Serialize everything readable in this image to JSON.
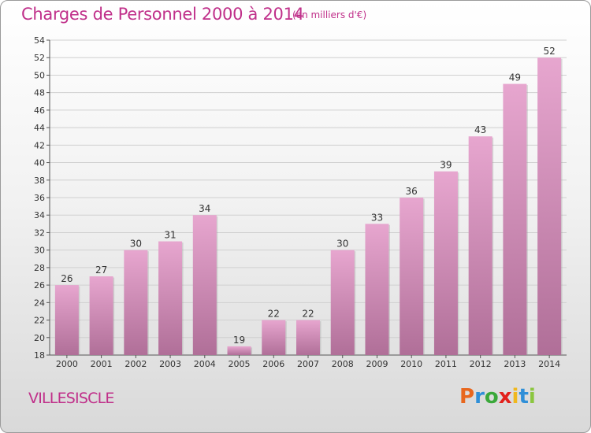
{
  "title": "Charges de Personnel 2000 à 2014",
  "unit_note": "(en milliers d'€)",
  "commune": "VILLESISCLE",
  "brand": {
    "letters": [
      "P",
      "r",
      "o",
      "x",
      "i",
      "t",
      "i"
    ],
    "colors": [
      "#e8671e",
      "#2f8fd8",
      "#3aa83a",
      "#e2211c",
      "#f0b81e",
      "#2f8fd8",
      "#8bc63f"
    ]
  },
  "colors": {
    "accent": "#c0308a",
    "bar_top": "#e7a6cf",
    "bar_bottom": "#b06f98"
  },
  "chart_data": {
    "type": "bar",
    "categories": [
      "2000",
      "2001",
      "2002",
      "2003",
      "2004",
      "2005",
      "2006",
      "2007",
      "2008",
      "2009",
      "2010",
      "2011",
      "2012",
      "2013",
      "2014"
    ],
    "values": [
      26,
      27,
      30,
      31,
      34,
      19,
      22,
      22,
      30,
      33,
      36,
      39,
      43,
      49,
      52
    ],
    "title": "Charges de Personnel 2000 à 2014",
    "subtitle": "(en milliers d'€)",
    "xlabel": "",
    "ylabel": "",
    "ylim": [
      18,
      54
    ],
    "yticks": [
      18,
      20,
      22,
      24,
      26,
      28,
      30,
      32,
      34,
      36,
      38,
      40,
      42,
      44,
      46,
      48,
      50,
      52,
      54
    ],
    "grid": true,
    "legend": "none"
  }
}
